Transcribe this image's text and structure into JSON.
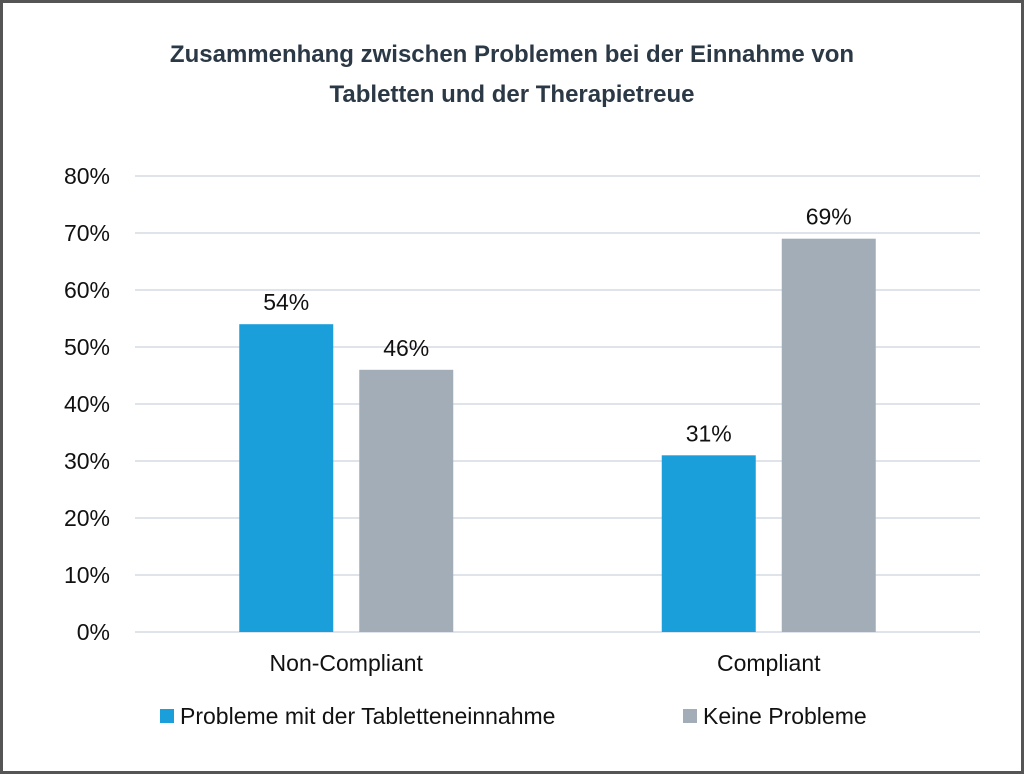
{
  "chart_data": {
    "type": "bar",
    "title": "Zusammenhang zwischen Problemen bei der Einnahme von Tabletten und der Therapietreue",
    "title_lines": [
      "Zusammenhang zwischen Problemen bei der Einnahme von",
      "Tabletten und der Therapietreue"
    ],
    "categories": [
      "Non-Compliant",
      "Compliant"
    ],
    "series": [
      {
        "name": "Probleme mit der Tabletteneinnahme",
        "values": [
          54,
          31
        ],
        "labels": [
          "54%",
          "31%"
        ],
        "color": "#1a9fdb"
      },
      {
        "name": "Keine Probleme",
        "values": [
          46,
          69
        ],
        "labels": [
          "46%",
          "69%"
        ],
        "color": "#a3adb7"
      }
    ],
    "ylim": [
      0,
      80
    ],
    "yticks": [
      "0%",
      "10%",
      "20%",
      "30%",
      "40%",
      "50%",
      "60%",
      "70%",
      "80%"
    ],
    "xlabel": "",
    "ylabel": "",
    "grid": true,
    "legend": "bottom",
    "gridcolor": "#c9d4dd"
  }
}
